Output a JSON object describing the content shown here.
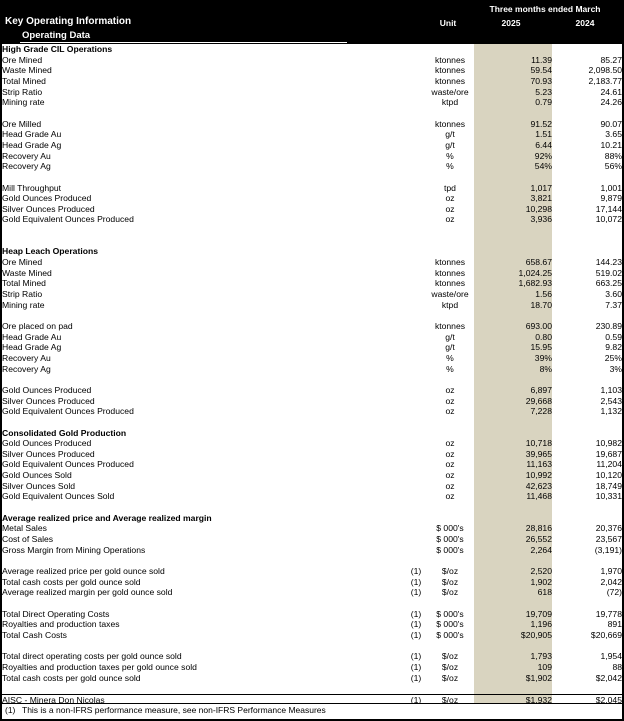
{
  "header": {
    "title": "Key Operating Information",
    "subtitle": "Operating Data",
    "period": "Three months ended March",
    "unit_label": "Unit",
    "col_2025": "2025",
    "col_2024": "2024"
  },
  "colors": {
    "header_bg": "#000000",
    "header_text": "#ffffff",
    "highlight_column": "#d9d4c0"
  },
  "table": {
    "rows": [
      {
        "type": "section",
        "label": "High Grade CIL Operations"
      },
      {
        "type": "data",
        "label": "Ore Mined",
        "fn": "",
        "unit": "ktonnes",
        "y2025": "11.39",
        "y2024": "85.27"
      },
      {
        "type": "data",
        "label": "Waste Mined",
        "fn": "",
        "unit": "ktonnes",
        "y2025": "59.54",
        "y2024": "2,098.50"
      },
      {
        "type": "data",
        "label": "Total Mined",
        "fn": "",
        "unit": "ktonnes",
        "y2025": "70.93",
        "y2024": "2,183.77"
      },
      {
        "type": "data",
        "label": "Strip Ratio",
        "fn": "",
        "unit": "waste/ore",
        "y2025": "5.23",
        "y2024": "24.61"
      },
      {
        "type": "data",
        "label": "Mining rate",
        "fn": "",
        "unit": "ktpd",
        "y2025": "0.79",
        "y2024": "24.26"
      },
      {
        "type": "blank"
      },
      {
        "type": "data",
        "label": "Ore Milled",
        "fn": "",
        "unit": "ktonnes",
        "y2025": "91.52",
        "y2024": "90.07"
      },
      {
        "type": "data",
        "label": "Head Grade Au",
        "fn": "",
        "unit": "g/t",
        "y2025": "1.51",
        "y2024": "3.65"
      },
      {
        "type": "data",
        "label": "Head Grade Ag",
        "fn": "",
        "unit": "g/t",
        "y2025": "6.44",
        "y2024": "10.21"
      },
      {
        "type": "data",
        "label": "Recovery Au",
        "fn": "",
        "unit": "%",
        "y2025": "92%",
        "y2024": "88%"
      },
      {
        "type": "data",
        "label": "Recovery Ag",
        "fn": "",
        "unit": "%",
        "y2025": "54%",
        "y2024": "56%"
      },
      {
        "type": "blank"
      },
      {
        "type": "data",
        "label": "Mill Throughput",
        "fn": "",
        "unit": "tpd",
        "y2025": "1,017",
        "y2024": "1,001"
      },
      {
        "type": "data",
        "label": "Gold Ounces Produced",
        "fn": "",
        "unit": "oz",
        "y2025": "3,821",
        "y2024": "9,879"
      },
      {
        "type": "data",
        "label": "Silver Ounces Produced",
        "fn": "",
        "unit": "oz",
        "y2025": "10,298",
        "y2024": "17,144"
      },
      {
        "type": "data",
        "label": "Gold Equivalent Ounces Produced",
        "fn": "",
        "unit": "oz",
        "y2025": "3,936",
        "y2024": "10,072"
      },
      {
        "type": "blank"
      },
      {
        "type": "blank"
      },
      {
        "type": "section",
        "label": "Heap Leach Operations"
      },
      {
        "type": "data",
        "label": "Ore Mined",
        "fn": "",
        "unit": "ktonnes",
        "y2025": "658.67",
        "y2024": "144.23"
      },
      {
        "type": "data",
        "label": "Waste Mined",
        "fn": "",
        "unit": "ktonnes",
        "y2025": "1,024.25",
        "y2024": "519.02"
      },
      {
        "type": "data",
        "label": "Total Mined",
        "fn": "",
        "unit": "ktonnes",
        "y2025": "1,682.93",
        "y2024": "663.25"
      },
      {
        "type": "data",
        "label": "Strip Ratio",
        "fn": "",
        "unit": "waste/ore",
        "y2025": "1.56",
        "y2024": "3.60"
      },
      {
        "type": "data",
        "label": "Mining rate",
        "fn": "",
        "unit": "ktpd",
        "y2025": "18.70",
        "y2024": "7.37"
      },
      {
        "type": "blank"
      },
      {
        "type": "data",
        "label": "Ore placed on pad",
        "fn": "",
        "unit": "ktonnes",
        "y2025": "693.00",
        "y2024": "230.89"
      },
      {
        "type": "data",
        "label": "Head Grade Au",
        "fn": "",
        "unit": "g/t",
        "y2025": "0.80",
        "y2024": "0.59"
      },
      {
        "type": "data",
        "label": "Head Grade Ag",
        "fn": "",
        "unit": "g/t",
        "y2025": "15.95",
        "y2024": "9.82"
      },
      {
        "type": "data",
        "label": "Recovery Au",
        "fn": "",
        "unit": "%",
        "y2025": "39%",
        "y2024": "25%"
      },
      {
        "type": "data",
        "label": "Recovery Ag",
        "fn": "",
        "unit": "%",
        "y2025": "8%",
        "y2024": "3%"
      },
      {
        "type": "blank"
      },
      {
        "type": "data",
        "label": "Gold Ounces Produced",
        "fn": "",
        "unit": "oz",
        "y2025": "6,897",
        "y2024": "1,103"
      },
      {
        "type": "data",
        "label": "Silver Ounces Produced",
        "fn": "",
        "unit": "oz",
        "y2025": "29,668",
        "y2024": "2,543"
      },
      {
        "type": "data",
        "label": "Gold Equivalent Ounces Produced",
        "fn": "",
        "unit": "oz",
        "y2025": "7,228",
        "y2024": "1,132"
      },
      {
        "type": "blank"
      },
      {
        "type": "section",
        "label": "Consolidated Gold Production"
      },
      {
        "type": "data",
        "label": "Gold Ounces Produced",
        "fn": "",
        "unit": "oz",
        "y2025": "10,718",
        "y2024": "10,982"
      },
      {
        "type": "data",
        "label": "Silver Ounces Produced",
        "fn": "",
        "unit": "oz",
        "y2025": "39,965",
        "y2024": "19,687"
      },
      {
        "type": "data",
        "label": "Gold Equivalent Ounces Produced",
        "fn": "",
        "unit": "oz",
        "y2025": "11,163",
        "y2024": "11,204"
      },
      {
        "type": "data",
        "label": "Gold Ounces Sold",
        "fn": "",
        "unit": "oz",
        "y2025": "10,992",
        "y2024": "10,120"
      },
      {
        "type": "data",
        "label": "Silver Ounces Sold",
        "fn": "",
        "unit": "oz",
        "y2025": "42,623",
        "y2024": "18,749"
      },
      {
        "type": "data",
        "label": "Gold Equivalent Ounces Sold",
        "fn": "",
        "unit": "oz",
        "y2025": "11,468",
        "y2024": "10,331"
      },
      {
        "type": "blank"
      },
      {
        "type": "section",
        "label": "Average realized price and Average realized margin"
      },
      {
        "type": "data",
        "label": "Metal Sales",
        "fn": "",
        "unit": "$ 000's",
        "y2025": "28,816",
        "y2024": "20,376"
      },
      {
        "type": "data",
        "label": "Cost of Sales",
        "fn": "",
        "unit": "$ 000's",
        "y2025": "26,552",
        "y2024": "23,567"
      },
      {
        "type": "data",
        "label": "Gross Margin from Mining Operations",
        "fn": "",
        "unit": "$ 000's",
        "y2025": "2,264",
        "y2024": "(3,191)"
      },
      {
        "type": "blank"
      },
      {
        "type": "data",
        "label": "Average realized price per gold ounce sold",
        "fn": "(1)",
        "unit": "$/oz",
        "y2025": "2,520",
        "y2024": "1,970"
      },
      {
        "type": "data",
        "label": "Total cash costs per gold ounce sold",
        "fn": "(1)",
        "unit": "$/oz",
        "y2025": "1,902",
        "y2024": "2,042"
      },
      {
        "type": "data",
        "label": "Average realized margin per gold ounce sold",
        "fn": "(1)",
        "unit": "$/oz",
        "y2025": "618",
        "y2024": "(72)"
      },
      {
        "type": "blank"
      },
      {
        "type": "data",
        "label": "Total Direct Operating Costs",
        "fn": "(1)",
        "unit": "$ 000's",
        "y2025": "19,709",
        "y2024": "19,778"
      },
      {
        "type": "data",
        "label": "Royalties and production taxes",
        "fn": "(1)",
        "unit": "$ 000's",
        "y2025": "1,196",
        "y2024": "891"
      },
      {
        "type": "data",
        "label": "Total Cash Costs",
        "fn": "(1)",
        "unit": "$ 000's",
        "y2025": "$20,905",
        "y2024": "$20,669"
      },
      {
        "type": "blank"
      },
      {
        "type": "data",
        "label": "Total direct operating costs per gold ounce sold",
        "fn": "(1)",
        "unit": "$/oz",
        "y2025": "1,793",
        "y2024": "1,954"
      },
      {
        "type": "data",
        "label": "Royalties and production taxes per gold ounce sold",
        "fn": "(1)",
        "unit": "$/oz",
        "y2025": "109",
        "y2024": "88"
      },
      {
        "type": "data",
        "label": "Total cash costs per gold ounce sold",
        "fn": "(1)",
        "unit": "$/oz",
        "y2025": "$1,902",
        "y2024": "$2,042"
      },
      {
        "type": "blank"
      },
      {
        "type": "data",
        "label": "AISC - Minera Don Nicolas",
        "fn": "(1)",
        "unit": "$/oz",
        "y2025": "$1,932",
        "y2024": "$2,045",
        "rule_top": true
      }
    ]
  },
  "footnote": {
    "marker": "(1)",
    "text": "This is a non-IFRS performance measure, see non-IFRS Performance Measures"
  }
}
